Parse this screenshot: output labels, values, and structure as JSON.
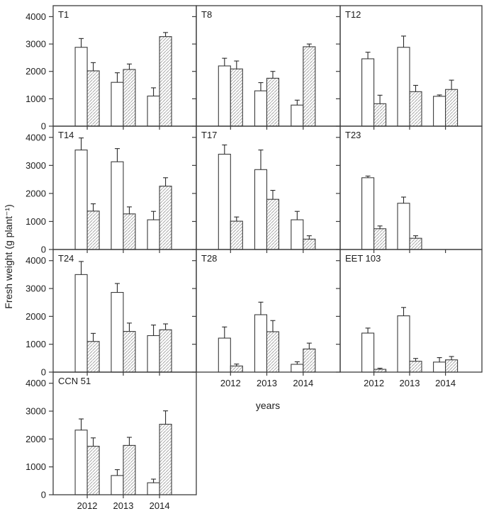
{
  "chart_data": {
    "type": "bar",
    "title": "",
    "xlabel": "years",
    "ylabel": "Fresh weight (g plant⁻¹)",
    "ylim": [
      0,
      4400
    ],
    "yticks": [
      0,
      1000,
      2000,
      3000,
      4000
    ],
    "ytick_labels": [
      "0",
      "1000",
      "2000",
      "3000",
      "4000"
    ],
    "categories": [
      "2012",
      "2013",
      "2014"
    ],
    "grid": false,
    "legend_position": "none",
    "layout": {
      "columns": 3,
      "description": "small-multiples grid of 10 panels; last row has a single panel; paired bars per year: open (white) and diagonally hatched; error bars point upward only"
    },
    "series_styles": [
      {
        "name": "open",
        "fill": "white"
      },
      {
        "name": "hatched",
        "fill": "diagonal-hatch"
      }
    ],
    "panels": [
      {
        "label": "T1",
        "series": [
          {
            "name": "open",
            "values": [
              2880,
              1600,
              1100
            ],
            "errors": [
              320,
              350,
              300
            ]
          },
          {
            "name": "hatched",
            "values": [
              2020,
              2070,
              3270
            ],
            "errors": [
              300,
              200,
              150
            ]
          }
        ]
      },
      {
        "label": "T8",
        "series": [
          {
            "name": "open",
            "values": [
              2200,
              1290,
              770
            ],
            "errors": [
              280,
              300,
              180
            ]
          },
          {
            "name": "hatched",
            "values": [
              2090,
              1750,
              2900
            ],
            "errors": [
              290,
              250,
              100
            ]
          }
        ]
      },
      {
        "label": "T12",
        "series": [
          {
            "name": "open",
            "values": [
              2460,
              2880,
              1090
            ],
            "errors": [
              240,
              410,
              50
            ]
          },
          {
            "name": "hatched",
            "values": [
              820,
              1260,
              1340
            ],
            "errors": [
              310,
              230,
              340
            ]
          }
        ]
      },
      {
        "label": "T14",
        "series": [
          {
            "name": "open",
            "values": [
              3550,
              3130,
              1060
            ],
            "errors": [
              430,
              470,
              300
            ]
          },
          {
            "name": "hatched",
            "values": [
              1370,
              1270,
              2260
            ],
            "errors": [
              260,
              250,
              300
            ]
          }
        ]
      },
      {
        "label": "T17",
        "series": [
          {
            "name": "open",
            "values": [
              3400,
              2850,
              1060
            ],
            "errors": [
              330,
              700,
              300
            ]
          },
          {
            "name": "hatched",
            "values": [
              1010,
              1790,
              370
            ],
            "errors": [
              150,
              320,
              120
            ]
          }
        ]
      },
      {
        "label": "T23",
        "series": [
          {
            "name": "open",
            "values": [
              2560,
              1650,
              null
            ],
            "errors": [
              60,
              220,
              null
            ]
          },
          {
            "name": "hatched",
            "values": [
              740,
              400,
              null
            ],
            "errors": [
              100,
              90,
              null
            ]
          }
        ]
      },
      {
        "label": "T24",
        "series": [
          {
            "name": "open",
            "values": [
              3500,
              2860,
              1310
            ],
            "errors": [
              470,
              320,
              380
            ]
          },
          {
            "name": "hatched",
            "values": [
              1100,
              1460,
              1520
            ],
            "errors": [
              290,
              300,
              210
            ]
          }
        ]
      },
      {
        "label": "T28",
        "series": [
          {
            "name": "open",
            "values": [
              1220,
              2060,
              280
            ],
            "errors": [
              400,
              450,
              90
            ]
          },
          {
            "name": "hatched",
            "values": [
              220,
              1450,
              830
            ],
            "errors": [
              70,
              400,
              210
            ]
          }
        ]
      },
      {
        "label": "EET 103",
        "series": [
          {
            "name": "open",
            "values": [
              1400,
              2020,
              360
            ],
            "errors": [
              180,
              300,
              160
            ]
          },
          {
            "name": "hatched",
            "values": [
              100,
              390,
              440
            ],
            "errors": [
              40,
              100,
              120
            ]
          }
        ]
      },
      {
        "label": "CCN 51",
        "series": [
          {
            "name": "open",
            "values": [
              2320,
              690,
              430
            ],
            "errors": [
              400,
              210,
              130
            ]
          },
          {
            "name": "hatched",
            "values": [
              1740,
              1770,
              2530
            ],
            "errors": [
              300,
              290,
              480
            ]
          }
        ]
      }
    ]
  }
}
